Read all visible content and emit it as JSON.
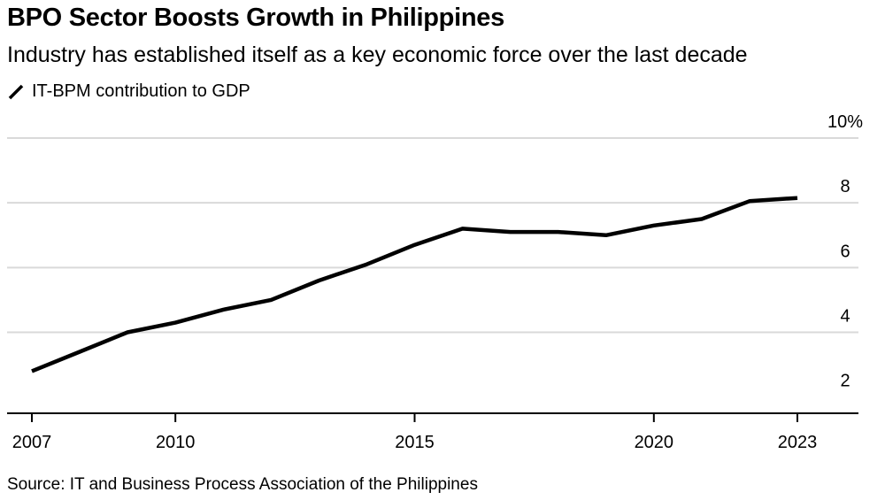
{
  "title": "BPO Sector Boosts Growth in Philippines",
  "subtitle": "Industry has established itself as a key economic force over the last decade",
  "source": "Source: IT and Business Process Association of the Philippines",
  "colors": {
    "line": "#000000",
    "grid": "#d9d9d9",
    "axis": "#000000",
    "background": "#ffffff"
  },
  "chart_data": {
    "type": "line",
    "title": "BPO Sector Boosts Growth in Philippines",
    "subtitle": "Industry has established itself as a key economic force over the last decade",
    "xlabel": "",
    "ylabel": "",
    "ylim": [
      1.5,
      10
    ],
    "xlim": [
      2006.9,
      2024.4
    ],
    "grid": true,
    "legend_position": "top-left",
    "yticks": [
      2,
      4,
      6,
      8,
      10
    ],
    "ytick_labels": [
      "2",
      "4",
      "6",
      "8",
      "10%"
    ],
    "xticks": [
      2007,
      2010,
      2015,
      2020,
      2023
    ],
    "xtick_labels": [
      "2007",
      "2010",
      "2015",
      "2020",
      "2023"
    ],
    "series": [
      {
        "name": "IT-BPM contribution to GDP",
        "x": [
          2007,
          2008,
          2009,
          2010,
          2011,
          2012,
          2013,
          2014,
          2015,
          2016,
          2017,
          2018,
          2019,
          2020,
          2021,
          2022,
          2023
        ],
        "values": [
          2.8,
          3.4,
          4.0,
          4.3,
          4.7,
          5.0,
          5.6,
          6.1,
          6.7,
          7.2,
          7.1,
          7.1,
          7.0,
          7.3,
          7.5,
          8.05,
          8.15
        ]
      }
    ]
  }
}
